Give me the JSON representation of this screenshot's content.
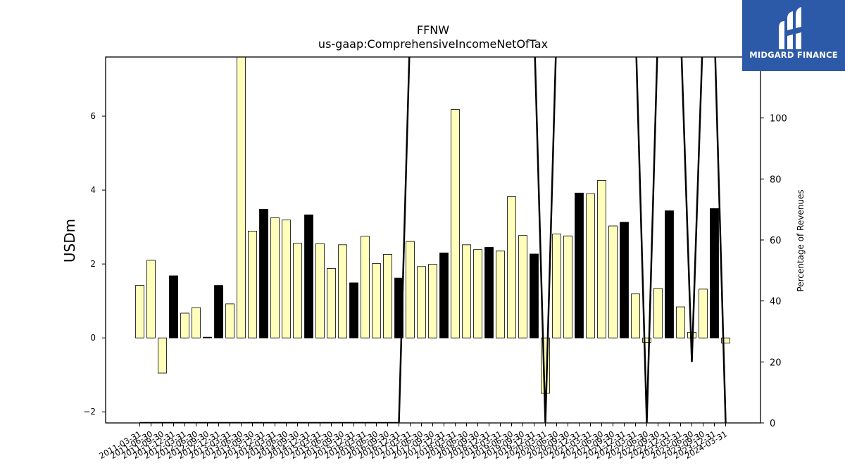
{
  "logo": {
    "text": "MIDGARD FINANCE",
    "background": "#2d5aa8"
  },
  "chart_data": {
    "type": "bar",
    "title": "FFNW",
    "subtitle": "us-gaap:ComprehensiveIncomeNetOfTax",
    "ylabel": "USDm",
    "y2label": "Percentage of Revenues",
    "ylim": [
      -2.3,
      7.6
    ],
    "y2lim": [
      0,
      120
    ],
    "yticks": [
      -2,
      0,
      2,
      4,
      6
    ],
    "y2ticks": [
      0,
      20,
      40,
      60,
      80,
      100
    ],
    "colors": {
      "quarter": "#ffffbb",
      "year_end": "#000000",
      "line": "#000000"
    },
    "categories": [
      "2011-03-31",
      "2011-06-30",
      "2011-09-30",
      "2011-12-31",
      "2012-03-31",
      "2012-06-30",
      "2012-09-30",
      "2012-12-31",
      "2013-03-31",
      "2013-06-30",
      "2013-09-30",
      "2013-12-31",
      "2014-03-31",
      "2014-06-30",
      "2014-09-30",
      "2014-12-31",
      "2015-03-31",
      "2015-06-30",
      "2015-09-30",
      "2015-12-31",
      "2016-03-31",
      "2016-06-30",
      "2016-09-30",
      "2016-12-31",
      "2017-03-31",
      "2017-06-30",
      "2017-09-30",
      "2017-12-31",
      "2018-03-31",
      "2018-06-30",
      "2018-09-30",
      "2018-12-31",
      "2019-03-31",
      "2019-06-30",
      "2019-09-30",
      "2019-12-31",
      "2020-03-31",
      "2020-06-30",
      "2020-09-30",
      "2020-12-31",
      "2021-03-31",
      "2021-06-30",
      "2021-09-30",
      "2021-12-31",
      "2022-03-31",
      "2022-06-30",
      "2022-09-30",
      "2022-12-31",
      "2023-03-31",
      "2023-06-30",
      "2023-09-30",
      "2023-12-31",
      "2024-03-31"
    ],
    "values": [
      1.42,
      2.1,
      -0.95,
      1.68,
      0.67,
      0.82,
      0.02,
      1.42,
      0.92,
      7.7,
      2.89,
      3.48,
      3.25,
      3.19,
      2.56,
      3.33,
      2.55,
      1.88,
      2.52,
      1.49,
      2.75,
      2.01,
      2.26,
      1.62,
      2.61,
      1.93,
      1.99,
      2.3,
      6.18,
      2.52,
      2.39,
      2.45,
      2.35,
      3.82,
      2.77,
      2.27,
      -1.5,
      2.81,
      2.76,
      3.92,
      3.9,
      4.26,
      3.03,
      3.13,
      1.19,
      -0.12,
      1.34,
      3.44,
      0.84,
      0.15,
      1.32,
      3.5,
      -0.14
    ],
    "year_end": [
      false,
      false,
      false,
      true,
      false,
      false,
      true,
      true,
      false,
      false,
      false,
      true,
      false,
      false,
      false,
      true,
      false,
      false,
      false,
      true,
      false,
      false,
      false,
      true,
      false,
      false,
      false,
      true,
      false,
      false,
      false,
      true,
      false,
      false,
      false,
      true,
      false,
      false,
      false,
      true,
      false,
      false,
      false,
      true,
      false,
      false,
      false,
      true,
      false,
      false,
      false,
      true,
      false
    ],
    "pct_of_revenues": [
      0,
      0,
      0,
      0,
      0,
      0,
      0,
      0,
      0,
      0,
      0,
      0,
      0,
      0,
      0,
      0,
      0,
      0,
      0,
      0,
      0,
      0,
      0,
      0,
      130,
      130,
      130,
      130,
      130,
      130,
      130,
      130,
      130,
      130,
      130,
      130,
      0,
      130,
      130,
      130,
      130,
      130,
      130,
      130,
      130,
      0,
      130,
      130,
      130,
      20,
      130,
      130,
      0
    ]
  }
}
